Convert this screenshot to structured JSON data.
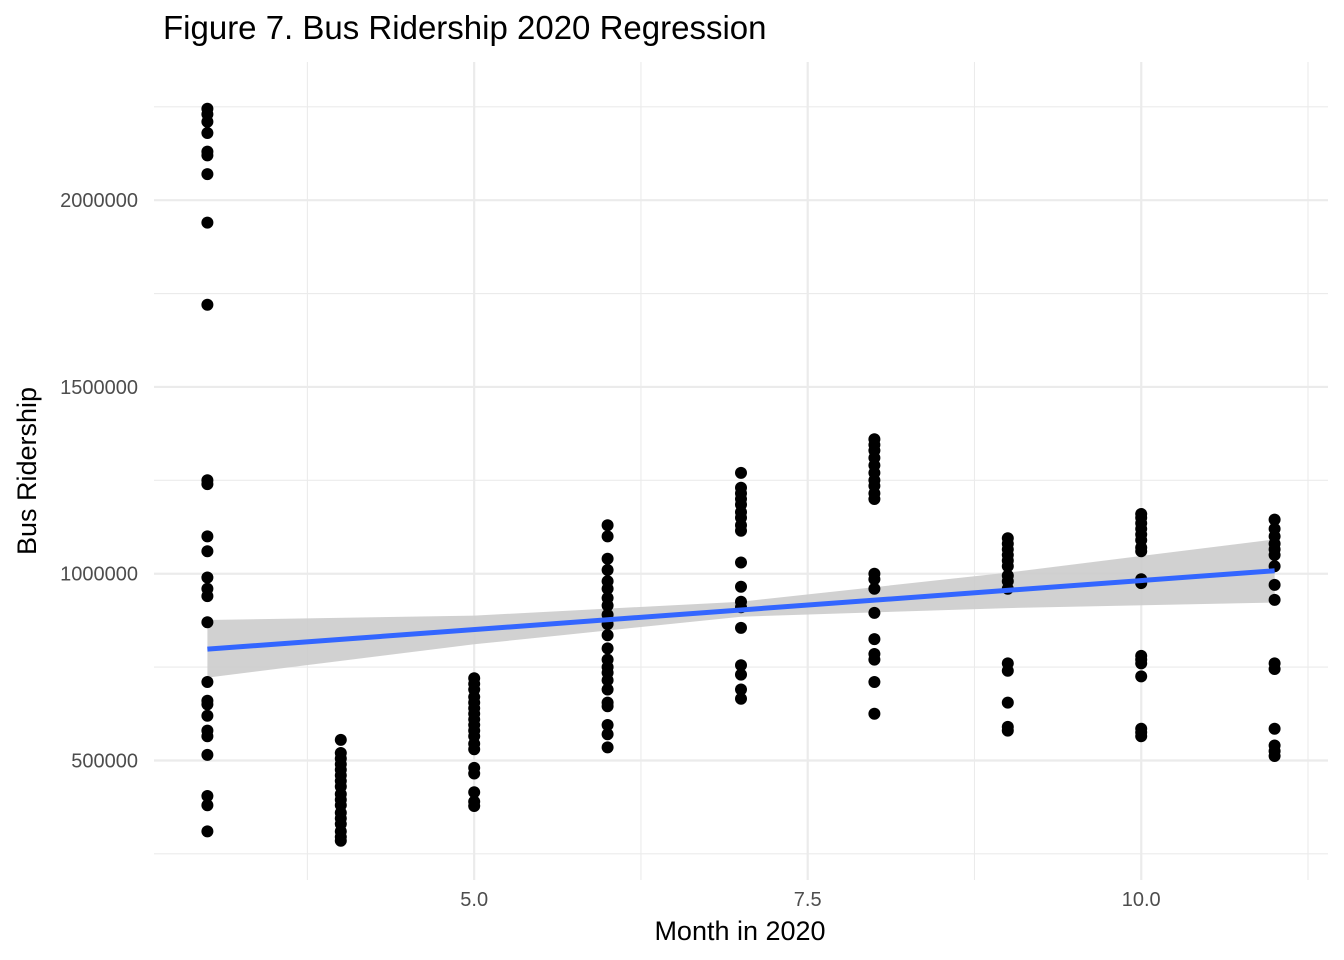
{
  "chart_data": {
    "type": "scatter",
    "title": "Figure 7. Bus Ridership 2020 Regression",
    "xlabel": "Month in 2020",
    "ylabel": "Bus Ridership",
    "xlim": [
      2.6,
      11.4
    ],
    "ylim": [
      180000,
      2370000
    ],
    "x_ticks": [
      5.0,
      7.5,
      10.0
    ],
    "x_tick_labels": [
      "5.0",
      "7.5",
      "10.0"
    ],
    "x_minor_ticks": [
      3.75,
      6.25,
      8.75,
      11.25
    ],
    "y_ticks": [
      500000,
      1000000,
      1500000,
      2000000
    ],
    "y_tick_labels": [
      "500000",
      "1000000",
      "1500000",
      "2000000"
    ],
    "y_minor_ticks": [
      250000,
      750000,
      1250000,
      1750000,
      2250000
    ],
    "grid": true,
    "point_color": "#000000",
    "fit_color": "#3366ff",
    "band_color": "#cccccc",
    "points": [
      {
        "month": 3,
        "ridership": [
          2245000,
          2230000,
          2210000,
          2180000,
          2130000,
          2120000,
          2070000,
          1940000,
          1720000,
          1250000,
          1240000,
          1100000,
          1060000,
          990000,
          960000,
          940000,
          870000,
          710000,
          660000,
          650000,
          620000,
          580000,
          565000,
          515000,
          405000,
          380000,
          310000
        ]
      },
      {
        "month": 4,
        "ridership": [
          555000,
          520000,
          505000,
          490000,
          475000,
          460000,
          445000,
          430000,
          410000,
          395000,
          380000,
          360000,
          345000,
          330000,
          310000,
          295000,
          285000
        ]
      },
      {
        "month": 5,
        "ridership": [
          720000,
          705000,
          690000,
          670000,
          655000,
          640000,
          625000,
          610000,
          595000,
          580000,
          565000,
          545000,
          530000,
          480000,
          465000,
          415000,
          390000,
          378000
        ]
      },
      {
        "month": 6,
        "ridership": [
          1130000,
          1100000,
          1040000,
          1010000,
          980000,
          960000,
          935000,
          915000,
          890000,
          865000,
          835000,
          800000,
          770000,
          750000,
          735000,
          715000,
          690000,
          655000,
          645000,
          595000,
          570000,
          535000
        ]
      },
      {
        "month": 7,
        "ridership": [
          1270000,
          1230000,
          1215000,
          1200000,
          1185000,
          1165000,
          1150000,
          1130000,
          1115000,
          1030000,
          965000,
          925000,
          910000,
          855000,
          755000,
          730000,
          690000,
          665000
        ]
      },
      {
        "month": 8,
        "ridership": [
          1360000,
          1345000,
          1330000,
          1310000,
          1290000,
          1270000,
          1250000,
          1235000,
          1215000,
          1200000,
          1000000,
          985000,
          960000,
          895000,
          825000,
          785000,
          770000,
          710000,
          625000
        ]
      },
      {
        "month": 9,
        "ridership": [
          1095000,
          1080000,
          1065000,
          1050000,
          1035000,
          1020000,
          995000,
          980000,
          960000,
          760000,
          740000,
          655000,
          590000,
          580000
        ]
      },
      {
        "month": 10,
        "ridership": [
          1160000,
          1150000,
          1135000,
          1120000,
          1105000,
          1090000,
          1070000,
          1060000,
          985000,
          975000,
          780000,
          770000,
          760000,
          725000,
          585000,
          575000,
          565000
        ]
      },
      {
        "month": 11,
        "ridership": [
          1145000,
          1120000,
          1100000,
          1080000,
          1065000,
          1050000,
          1020000,
          970000,
          930000,
          760000,
          745000,
          585000,
          540000,
          525000,
          512000
        ]
      }
    ],
    "regression": {
      "x": [
        3,
        11
      ],
      "y": [
        798000,
        1008000
      ]
    },
    "confidence_band": {
      "x": [
        3,
        5,
        7,
        9,
        11
      ],
      "lower": [
        722000,
        811000,
        885000,
        908000,
        923000
      ],
      "upper": [
        876000,
        888000,
        925000,
        1003000,
        1092000
      ]
    }
  }
}
